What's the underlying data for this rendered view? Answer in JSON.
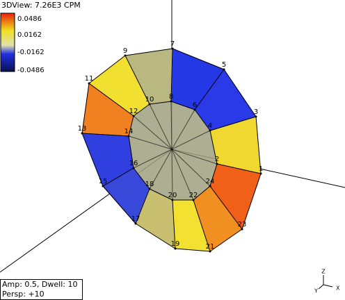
{
  "title": "3DView: 7.26E3 CPM",
  "color_legend": {
    "labels": [
      "0.0486",
      "0.0162",
      "-0.0162",
      "-0.0486"
    ]
  },
  "nodes": [
    "1",
    "2",
    "3",
    "4",
    "5",
    "6",
    "7",
    "8",
    "9",
    "10",
    "11",
    "12",
    "13",
    "14",
    "15",
    "16",
    "17",
    "18",
    "19",
    "20",
    "21",
    "22",
    "23",
    "24"
  ],
  "status": {
    "line1": "Amp: 0.5,  Dwell: 10",
    "line2": "Persp: +10"
  },
  "triad": {
    "z": "Z",
    "x": "X",
    "y": "Y"
  }
}
